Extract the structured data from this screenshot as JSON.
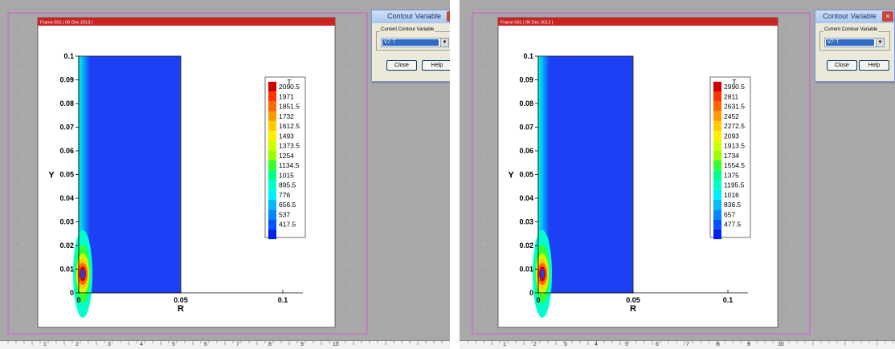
{
  "colors": {
    "frame_header": "#cc2222",
    "frame_border": "#cc66cc",
    "fluid_blue": "#1d3ff5",
    "legend_palette": [
      "#cc0000",
      "#ff3300",
      "#ff6600",
      "#ff9900",
      "#ffcc00",
      "#ffee00",
      "#ccff00",
      "#99ff00",
      "#33ff33",
      "#00ff88",
      "#00ffcc",
      "#00eeff",
      "#00bbff",
      "#0088ff",
      "#0055ff",
      "#0022ee"
    ]
  },
  "plots": [
    {
      "frame_label": "Frame 001 | 06 Dec 2013 |",
      "legend_title": "T",
      "legend_values": [
        "2090.5",
        "1971",
        "1851.5",
        "1732",
        "1612.5",
        "1493",
        "1373.5",
        "1254",
        "1134.5",
        "1015",
        "895.5",
        "776",
        "656.5",
        "537",
        "417.5"
      ],
      "dialog": {
        "title": "Contour Variable",
        "close_glyph": "×",
        "group_label": "Current Contour Variable",
        "selected": "V7: T",
        "arrow_glyph": "▼",
        "close_button": "Close",
        "help_button": "Help"
      }
    },
    {
      "frame_label": "Frame 001 | 06 Dec 2013 |",
      "legend_title": "T",
      "legend_values": [
        "2990.5",
        "2811",
        "2631.5",
        "2452",
        "2272.5",
        "2093",
        "1913.5",
        "1734",
        "1554.5",
        "1375",
        "1195.5",
        "1016",
        "836.5",
        "657",
        "477.5"
      ],
      "dialog": {
        "title": "Contour Variable",
        "close_glyph": "×",
        "group_label": "Current Contour Variable",
        "selected": "V7: T",
        "arrow_glyph": "▼",
        "close_button": "Close",
        "help_button": "Help"
      }
    }
  ],
  "axes": {
    "xlabel": "R",
    "ylabel": "Y",
    "x_ticks": [
      "0",
      "0.05",
      "0.1"
    ],
    "y_ticks": [
      "0",
      "0.01",
      "0.02",
      "0.03",
      "0.04",
      "0.05",
      "0.06",
      "0.07",
      "0.08",
      "0.09",
      "0.1"
    ]
  },
  "ruler_labels": [
    "1",
    "2",
    "3",
    "4",
    "5",
    "6",
    "7",
    "8",
    "9",
    "10"
  ]
}
